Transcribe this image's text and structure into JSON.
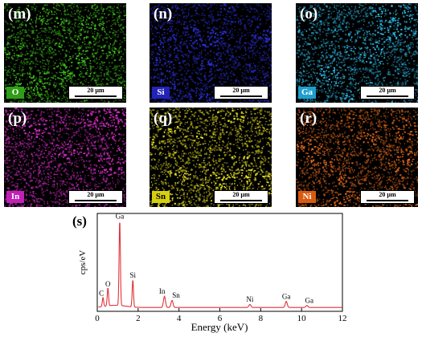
{
  "panels": [
    {
      "label": "(m)",
      "element": "O",
      "scale": "20 µm",
      "color": "#3ec21a",
      "badge_bg": "#2f9e16",
      "badge_fg": "#ffffff"
    },
    {
      "label": "(n)",
      "element": "Si",
      "scale": "20 µm",
      "color": "#2b2fd0",
      "badge_bg": "#2124b8",
      "badge_fg": "#ffffff"
    },
    {
      "label": "(o)",
      "element": "Ga",
      "scale": "20 µm",
      "color": "#2bb4e0",
      "badge_bg": "#1d9fcc",
      "badge_fg": "#ffffff"
    },
    {
      "label": "(p)",
      "element": "In",
      "scale": "20 µm",
      "color": "#d42cc6",
      "badge_bg": "#c020b5",
      "badge_fg": "#ffffff"
    },
    {
      "label": "(q)",
      "element": "Sn",
      "scale": "20 µm",
      "color": "#e6df22",
      "badge_bg": "#d6cf10",
      "badge_fg": "#000000"
    },
    {
      "label": "(r)",
      "element": "Ni",
      "scale": "20 µm",
      "color": "#e46a1a",
      "badge_bg": "#d85a10",
      "badge_fg": "#ffffff"
    }
  ],
  "spectrum": {
    "label": "(s)",
    "chart_data": {
      "type": "line",
      "xlabel": "Energy (keV)",
      "ylabel": "cps/eV",
      "xlim": [
        0,
        12
      ],
      "xticks": [
        0,
        2,
        4,
        6,
        8,
        10,
        12
      ],
      "grid": false,
      "line_color": "#e0343a",
      "peaks": [
        {
          "label": "C",
          "x": 0.28,
          "y": 9
        },
        {
          "label": "O",
          "x": 0.52,
          "y": 18
        },
        {
          "label": "Ga",
          "x": 1.1,
          "y": 85
        },
        {
          "label": "Si",
          "x": 1.74,
          "y": 27
        },
        {
          "label": "In",
          "x": 3.29,
          "y": 11
        },
        {
          "label": "Sn",
          "x": 3.66,
          "y": 7
        },
        {
          "label": "Ni",
          "x": 7.47,
          "y": 3
        },
        {
          "label": "Ga",
          "x": 9.25,
          "y": 6
        },
        {
          "label": "Ga",
          "x": 10.26,
          "y": 2
        }
      ]
    }
  }
}
